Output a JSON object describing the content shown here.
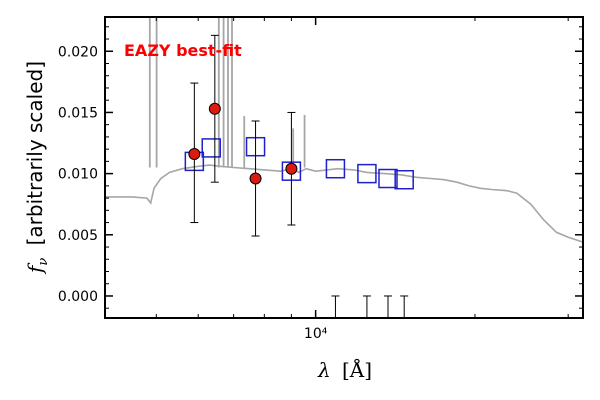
{
  "chart_data": {
    "type": "scatter",
    "title": "",
    "annotation": "EAZY best-fit",
    "xlabel_symbol": "λ",
    "xlabel_unit": "[Å]",
    "ylabel_symbol": "f",
    "ylabel_sub": "ν",
    "ylabel_text": "[arbitrarily scaled]",
    "x_scale": "log",
    "xlim": [
      4000,
      32000
    ],
    "ylim": [
      -0.0018,
      0.0228
    ],
    "y_ticks": [
      0.0,
      0.005,
      0.01,
      0.015,
      0.02
    ],
    "y_tick_labels": [
      "0.000",
      "0.005",
      "0.010",
      "0.015",
      "0.020"
    ],
    "x_major_tick": 10000,
    "x_major_tick_label": "10⁴",
    "grid": false,
    "colors": {
      "model": "#a6a6a6",
      "observed_fill": "#dd1a10",
      "model_photometry": "#1f1fcc",
      "annotation": "#ff0000",
      "errorbar": "#000000"
    },
    "model_sed": [
      [
        4000,
        0.0081
      ],
      [
        4500,
        0.0081
      ],
      [
        4800,
        0.008
      ],
      [
        4880,
        0.0076
      ],
      [
        4950,
        0.0088
      ],
      [
        5100,
        0.0096
      ],
      [
        5300,
        0.0101
      ],
      [
        5600,
        0.0104
      ],
      [
        6000,
        0.0106
      ],
      [
        6300,
        0.0107
      ],
      [
        6600,
        0.0106
      ],
      [
        7000,
        0.0105
      ],
      [
        7500,
        0.0104
      ],
      [
        8000,
        0.0103
      ],
      [
        8600,
        0.0102
      ],
      [
        9000,
        0.0104
      ],
      [
        9300,
        0.0101
      ],
      [
        9600,
        0.0104
      ],
      [
        10000,
        0.0102
      ],
      [
        10500,
        0.0103
      ],
      [
        11000,
        0.0104
      ],
      [
        11800,
        0.0103
      ],
      [
        12500,
        0.0101
      ],
      [
        13500,
        0.01
      ],
      [
        14500,
        0.0099
      ],
      [
        15500,
        0.0097
      ],
      [
        16500,
        0.0096
      ],
      [
        17500,
        0.0095
      ],
      [
        18500,
        0.0093
      ],
      [
        19500,
        0.009
      ],
      [
        20500,
        0.0088
      ],
      [
        21500,
        0.0087
      ],
      [
        23000,
        0.0086
      ],
      [
        24000,
        0.0084
      ],
      [
        25500,
        0.0075
      ],
      [
        27000,
        0.0062
      ],
      [
        28500,
        0.0052
      ],
      [
        30000,
        0.0048
      ],
      [
        32000,
        0.0044
      ]
    ],
    "emission_lines": [
      {
        "x": 4861,
        "y": 0.023
      },
      {
        "x": 5007,
        "y": 0.023
      },
      {
        "x": 6563,
        "y": 0.023
      },
      {
        "x": 6700,
        "y": 0.023
      },
      {
        "x": 6830,
        "y": 0.023
      },
      {
        "x": 6950,
        "y": 0.023
      },
      {
        "x": 7330,
        "y": 0.0147
      },
      {
        "x": 9070,
        "y": 0.0137
      },
      {
        "x": 9530,
        "y": 0.0148
      }
    ],
    "observed": [
      {
        "x": 5900,
        "y": 0.0116,
        "err_lo": 0.0056,
        "err_hi": 0.0058
      },
      {
        "x": 6450,
        "y": 0.0153,
        "err_lo": 0.006,
        "err_hi": 0.006
      },
      {
        "x": 7700,
        "y": 0.0096,
        "err_lo": 0.0047,
        "err_hi": 0.0047
      },
      {
        "x": 9000,
        "y": 0.0104,
        "err_lo": 0.0046,
        "err_hi": 0.0046
      }
    ],
    "model_photometry": [
      {
        "x": 5900,
        "y": 0.011
      },
      {
        "x": 6350,
        "y": 0.0121
      },
      {
        "x": 7700,
        "y": 0.0122
      },
      {
        "x": 9000,
        "y": 0.0102
      },
      {
        "x": 10900,
        "y": 0.0104
      },
      {
        "x": 12500,
        "y": 0.01
      },
      {
        "x": 13700,
        "y": 0.0096
      },
      {
        "x": 14700,
        "y": 0.0095
      }
    ],
    "filter_markers": [
      {
        "x": 10900
      },
      {
        "x": 12500
      },
      {
        "x": 13700
      },
      {
        "x": 14700
      }
    ]
  }
}
